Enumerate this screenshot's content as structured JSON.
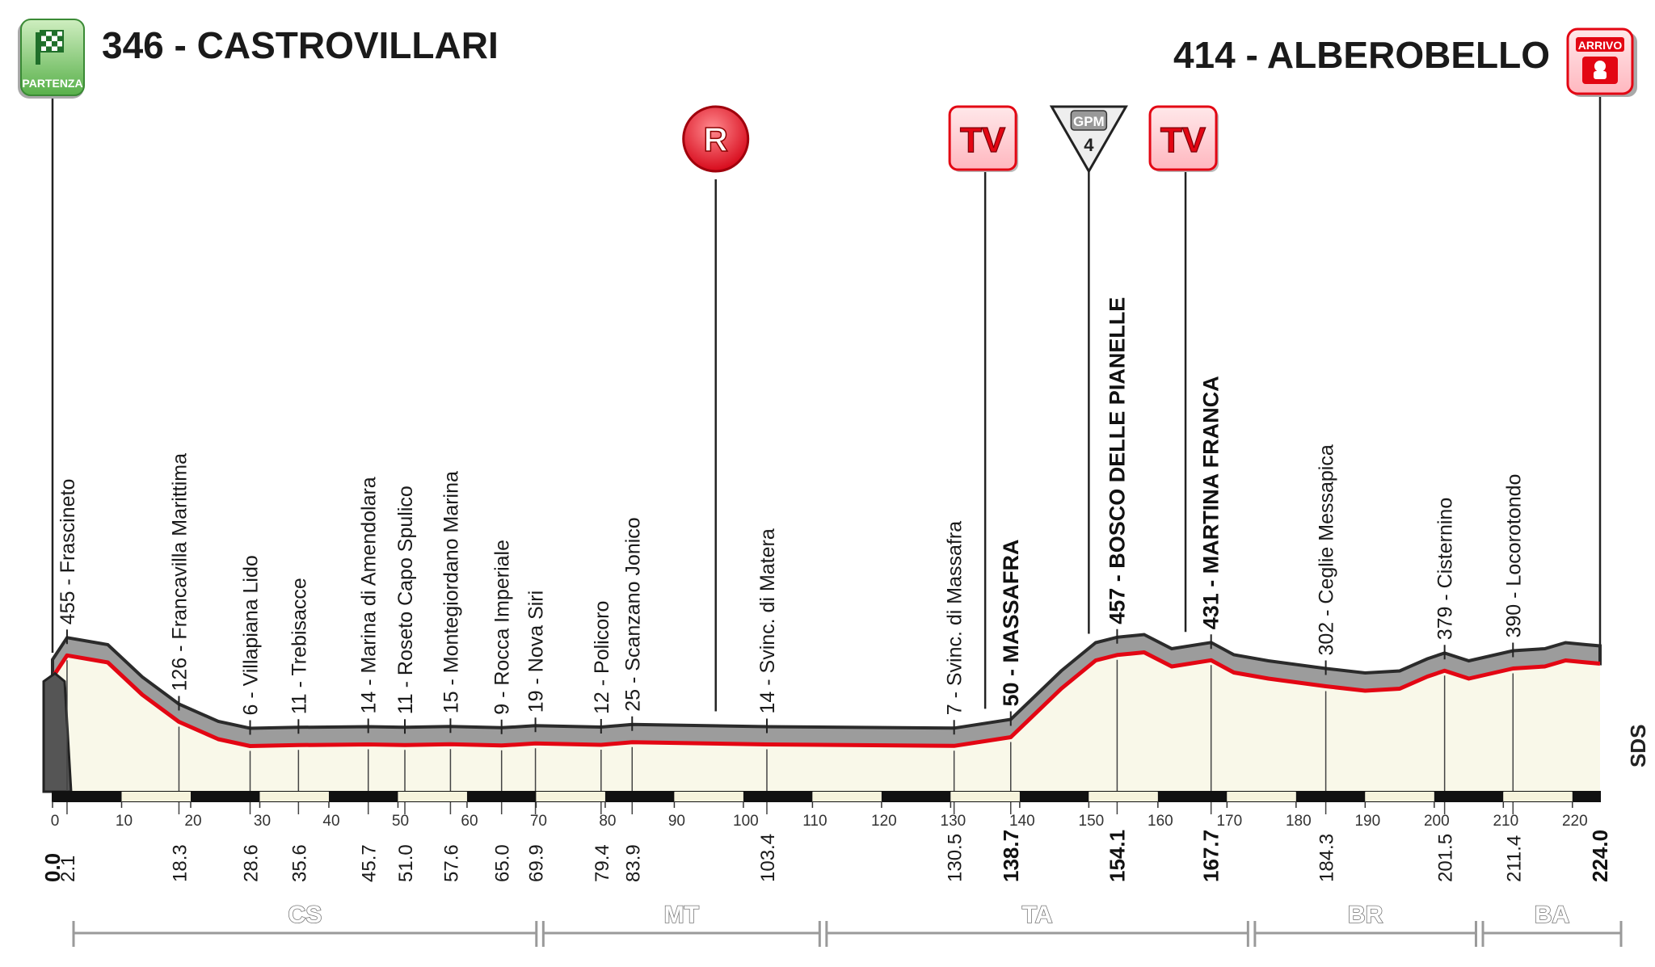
{
  "start": {
    "label": "346 - CASTROVILLARI",
    "badge": "PARTENZA",
    "altitude": 346
  },
  "finish": {
    "label": "414 - ALBEROBELLO",
    "badge": "ARRIVO",
    "altitude": 414
  },
  "markers": [
    {
      "type": "R",
      "text": "R",
      "km": 96
    },
    {
      "type": "TV",
      "text": "TV",
      "km": 135
    },
    {
      "type": "GPM",
      "text": "GPM",
      "category": "4",
      "km": 150
    },
    {
      "type": "TV",
      "text": "TV",
      "km": 164
    }
  ],
  "sds_label": "SDS",
  "chart_data": {
    "type": "area",
    "title": "",
    "xlabel": "",
    "ylabel": "",
    "xlim": [
      0,
      224
    ],
    "x_ticks": [
      0,
      10,
      20,
      30,
      40,
      50,
      60,
      70,
      80,
      90,
      100,
      110,
      120,
      130,
      140,
      150,
      160,
      170,
      180,
      190,
      200,
      210,
      220
    ],
    "profile": [
      [
        0,
        346
      ],
      [
        2.1,
        455
      ],
      [
        8,
        420
      ],
      [
        13,
        260
      ],
      [
        18.3,
        126
      ],
      [
        24,
        40
      ],
      [
        28.6,
        6
      ],
      [
        35.6,
        11
      ],
      [
        45.7,
        14
      ],
      [
        51.0,
        11
      ],
      [
        57.6,
        15
      ],
      [
        65.0,
        9
      ],
      [
        69.9,
        19
      ],
      [
        79.4,
        12
      ],
      [
        83.9,
        25
      ],
      [
        103.4,
        14
      ],
      [
        130.5,
        7
      ],
      [
        138.7,
        50
      ],
      [
        146,
        290
      ],
      [
        151,
        430
      ],
      [
        154.1,
        457
      ],
      [
        158,
        470
      ],
      [
        162,
        400
      ],
      [
        167.7,
        431
      ],
      [
        171,
        370
      ],
      [
        176,
        340
      ],
      [
        184.3,
        302
      ],
      [
        190,
        280
      ],
      [
        195,
        290
      ],
      [
        199,
        350
      ],
      [
        201.5,
        379
      ],
      [
        205,
        340
      ],
      [
        211.4,
        390
      ],
      [
        216,
        400
      ],
      [
        219,
        430
      ],
      [
        222,
        420
      ],
      [
        224.0,
        414
      ]
    ],
    "places": [
      {
        "km_label": "0.0",
        "name": "",
        "bold": true,
        "km": 0.0
      },
      {
        "km_label": "2.1",
        "name": "455 - Frascineto",
        "bold": false,
        "km": 2.1
      },
      {
        "km_label": "18.3",
        "name": "126 - Francavilla Marittima",
        "bold": false,
        "km": 18.3
      },
      {
        "km_label": "28.6",
        "name": "6 - Villapiana Lido",
        "bold": false,
        "km": 28.6
      },
      {
        "km_label": "35.6",
        "name": "11 - Trebisacce",
        "bold": false,
        "km": 35.6
      },
      {
        "km_label": "45.7",
        "name": "14 - Marina di Amendolara",
        "bold": false,
        "km": 45.7
      },
      {
        "km_label": "51.0",
        "name": "11 - Roseto Capo Spulico",
        "bold": false,
        "km": 51.0
      },
      {
        "km_label": "57.6",
        "name": "15 - Montegiordano Marina",
        "bold": false,
        "km": 57.6
      },
      {
        "km_label": "65.0",
        "name": "9 - Rocca Imperiale",
        "bold": false,
        "km": 65.0
      },
      {
        "km_label": "69.9",
        "name": "19 - Nova Siri",
        "bold": false,
        "km": 69.9
      },
      {
        "km_label": "79.4",
        "name": "12 - Policoro",
        "bold": false,
        "km": 79.4
      },
      {
        "km_label": "83.9",
        "name": "25 - Scanzano Jonico",
        "bold": false,
        "km": 83.9
      },
      {
        "km_label": "103.4",
        "name": "14 - Svinc. di Matera",
        "bold": false,
        "km": 103.4
      },
      {
        "km_label": "130.5",
        "name": "7 - Svinc. di Massafra",
        "bold": false,
        "km": 130.5
      },
      {
        "km_label": "138.7",
        "name": "50 - MASSAFRA",
        "bold": true,
        "km": 138.7
      },
      {
        "km_label": "154.1",
        "name": "457 - BOSCO DELLE PIANELLE",
        "bold": true,
        "km": 154.1
      },
      {
        "km_label": "167.7",
        "name": "431 - MARTINA FRANCA",
        "bold": true,
        "km": 167.7
      },
      {
        "km_label": "184.3",
        "name": "302 - Ceglie Messapica",
        "bold": false,
        "km": 184.3
      },
      {
        "km_label": "201.5",
        "name": "379 - Cisternino",
        "bold": false,
        "km": 201.5
      },
      {
        "km_label": "211.4",
        "name": "390 - Locorotondo",
        "bold": false,
        "km": 211.4
      },
      {
        "km_label": "224.0",
        "name": "",
        "bold": true,
        "km": 224.0
      }
    ],
    "provinces": [
      {
        "name": "CS",
        "from_km": 0,
        "to_km": 67
      },
      {
        "name": "MT",
        "from_km": 68,
        "to_km": 108
      },
      {
        "name": "TA",
        "from_km": 109,
        "to_km": 170
      },
      {
        "name": "BR",
        "from_km": 171,
        "to_km": 203
      },
      {
        "name": "BA",
        "from_km": 204,
        "to_km": 224
      }
    ],
    "colors": {
      "fill": "#f9f8e9",
      "line": "#e30613",
      "relief": "#9a9a9a",
      "badge_red": "#e30613",
      "badge_green": "#2e9e3e"
    }
  }
}
